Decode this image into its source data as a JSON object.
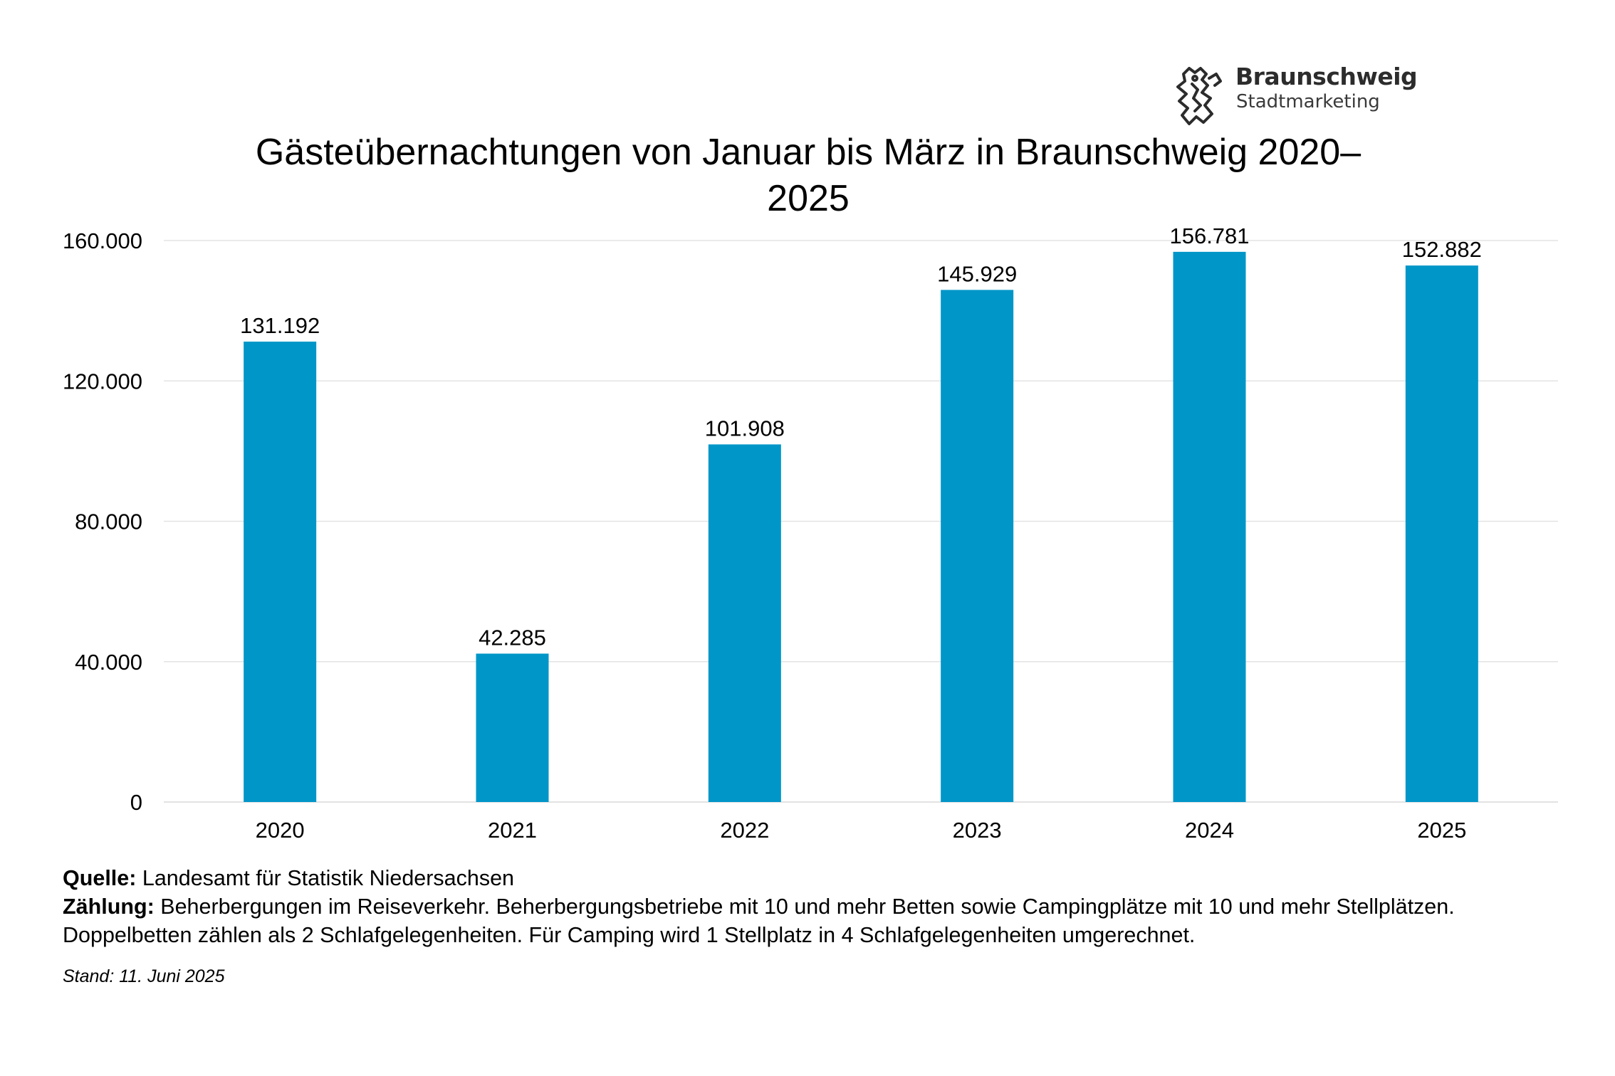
{
  "logo": {
    "name": "Braunschweig",
    "subtitle": "Stadtmarketing",
    "icon": "braunschweig-lion-icon"
  },
  "chart_data": {
    "type": "bar",
    "title": "Gästeübernachtungen von Januar bis März in Braunschweig 2020–\n2025",
    "categories": [
      "2020",
      "2021",
      "2022",
      "2023",
      "2024",
      "2025"
    ],
    "values": [
      131192,
      42285,
      101908,
      145929,
      156781,
      152882
    ],
    "value_labels": [
      "131.192",
      "42.285",
      "101.908",
      "145.929",
      "156.781",
      "152.882"
    ],
    "yticks": [
      0,
      40000,
      80000,
      120000,
      160000
    ],
    "ytick_labels": [
      "0",
      "40.000",
      "80.000",
      "120.000",
      "160.000"
    ],
    "ylim": [
      0,
      160000
    ],
    "xlabel": "",
    "ylabel": "",
    "grid": true,
    "legend": "none",
    "bar_color": "#0096c8",
    "grid_color": "#e3e3e3"
  },
  "footer": {
    "source_label": "Quelle:",
    "source_text": " Landesamt für Statistik Niedersachsen",
    "count_label": "Zählung:",
    "count_text": " Beherbergungen im Reiseverkehr. Beherbergungsbetriebe mit 10 und mehr Betten sowie Campingplätze mit 10 und mehr Stellplätzen.",
    "count_text_2": "Doppelbetten zählen als 2 Schlafgelegenheiten. Für Camping wird 1 Stellplatz in 4 Schlafgelegenheiten umgerechnet.",
    "stand": "Stand: 11. Juni 2025"
  }
}
